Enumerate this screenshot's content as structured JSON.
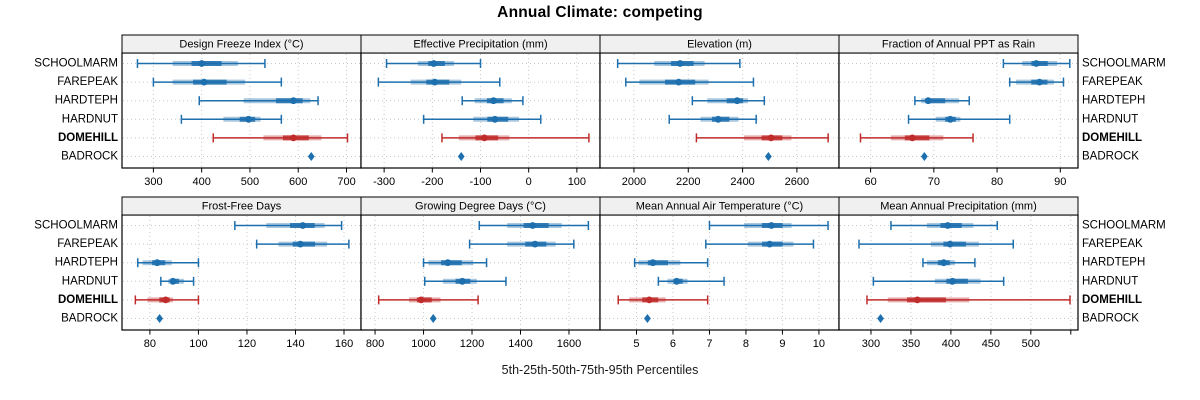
{
  "title": "Annual Climate: competing",
  "caption": "5th-25th-50th-75th-95th Percentiles",
  "sites": [
    "SCHOOLMARM",
    "FAREPEAK",
    "HARDTEPH",
    "HARDNUT",
    "DOMEHILL",
    "BADROCK"
  ],
  "highlight_site": "DOMEHILL",
  "point_only_site": "BADROCK",
  "colors": {
    "series": "#1d6fae",
    "highlight": "#c02b2b",
    "grid": "#c8c8c8",
    "strip_bg": "#f0f0f0",
    "border": "#000000",
    "tick_text": "#000000"
  },
  "chart_data": {
    "type": "trellis-dotplot",
    "percentile_labels": [
      "5th",
      "25th",
      "50th",
      "75th",
      "95th"
    ],
    "grid": "dotted",
    "layout": "2 rows x 4 columns, site labels on both left and right",
    "panels": [
      {
        "title": "Design Freeze Index (°C)",
        "ticks": [
          300,
          400,
          500,
          600,
          700
        ],
        "range": [
          235,
          730
        ],
        "intervals": [
          {
            "site": "SCHOOLMARM",
            "p": [
              267,
              340,
              400,
              475,
              531
            ]
          },
          {
            "site": "FAREPEAK",
            "p": [
              300,
              340,
              405,
              490,
              565
            ]
          },
          {
            "site": "HARDTEPH",
            "p": [
              395,
              487,
              590,
              625,
              641
            ]
          },
          {
            "site": "HARDNUT",
            "p": [
              358,
              445,
              497,
              522,
              565
            ]
          },
          {
            "site": "DOMEHILL",
            "p": [
              424,
              528,
              590,
              648,
              702
            ]
          }
        ],
        "point": {
          "site": "BADROCK",
          "value": 627
        }
      },
      {
        "title": "Effective Precipitation (mm)",
        "ticks": [
          -300,
          -200,
          -100,
          0,
          100
        ],
        "range": [
          -348,
          148
        ],
        "intervals": [
          {
            "site": "SCHOOLMARM",
            "p": [
              -295,
              -230,
              -197,
              -155,
              -100
            ]
          },
          {
            "site": "FAREPEAK",
            "p": [
              -312,
              -245,
              -195,
              -140,
              -60
            ]
          },
          {
            "site": "HARDTEPH",
            "p": [
              -138,
              -112,
              -73,
              -35,
              -12
            ]
          },
          {
            "site": "HARDNUT",
            "p": [
              -218,
              -115,
              -70,
              -20,
              25
            ]
          },
          {
            "site": "DOMEHILL",
            "p": [
              -180,
              -145,
              -92,
              -40,
              125
            ]
          }
        ],
        "point": {
          "site": "BADROCK",
          "value": -140
        }
      },
      {
        "title": "Elevation (m)",
        "ticks": [
          2000,
          2200,
          2400,
          2600
        ],
        "range": [
          1875,
          2755
        ],
        "intervals": [
          {
            "site": "SCHOOLMARM",
            "p": [
              1940,
              2075,
              2170,
              2260,
              2390
            ]
          },
          {
            "site": "FAREPEAK",
            "p": [
              1970,
              2020,
              2165,
              2275,
              2440
            ]
          },
          {
            "site": "HARDTEPH",
            "p": [
              2215,
              2270,
              2380,
              2420,
              2480
            ]
          },
          {
            "site": "HARDNUT",
            "p": [
              2130,
              2245,
              2310,
              2385,
              2450
            ]
          },
          {
            "site": "DOMEHILL",
            "p": [
              2230,
              2405,
              2505,
              2580,
              2715
            ]
          }
        ],
        "point": {
          "site": "BADROCK",
          "value": 2495
        }
      },
      {
        "title": "Fraction of Annual PPT as Rain",
        "ticks": [
          60,
          70,
          80,
          90
        ],
        "range": [
          55,
          92.8
        ],
        "intervals": [
          {
            "site": "SCHOOLMARM",
            "p": [
              81,
              84,
              86.2,
              89.5,
              91.5
            ]
          },
          {
            "site": "FAREPEAK",
            "p": [
              82,
              83,
              86.7,
              89,
              90.5
            ]
          },
          {
            "site": "HARDTEPH",
            "p": [
              67,
              68,
              69.1,
              74,
              75.6
            ]
          },
          {
            "site": "HARDNUT",
            "p": [
              66,
              70.3,
              72.6,
              74.2,
              82
            ]
          },
          {
            "site": "DOMEHILL",
            "p": [
              58.4,
              63.2,
              66.6,
              71.5,
              76.2
            ]
          }
        ],
        "point": {
          "site": "BADROCK",
          "value": 68.5
        }
      },
      {
        "title": "Frost-Free Days",
        "ticks": [
          80,
          100,
          120,
          140,
          160
        ],
        "range": [
          68.5,
          167
        ],
        "intervals": [
          {
            "site": "SCHOOLMARM",
            "p": [
              115,
              128,
              143,
              152,
              159
            ]
          },
          {
            "site": "FAREPEAK",
            "p": [
              124,
              133,
              142,
              153,
              162
            ]
          },
          {
            "site": "HARDTEPH",
            "p": [
              75,
              77,
              83,
              89,
              100
            ]
          },
          {
            "site": "HARDNUT",
            "p": [
              84.5,
              87.5,
              89.5,
              94,
              98
            ]
          },
          {
            "site": "DOMEHILL",
            "p": [
              74,
              79,
              86.5,
              89.5,
              100
            ]
          }
        ],
        "point": {
          "site": "BADROCK",
          "value": 84
        }
      },
      {
        "title": "Growing Degree Days (°C)",
        "ticks": [
          800,
          1000,
          1200,
          1400,
          1600
        ],
        "range": [
          742,
          1728
        ],
        "intervals": [
          {
            "site": "SCHOOLMARM",
            "p": [
              1230,
              1345,
              1450,
              1570,
              1680
            ]
          },
          {
            "site": "FAREPEAK",
            "p": [
              1190,
              1345,
              1460,
              1545,
              1620
            ]
          },
          {
            "site": "HARDTEPH",
            "p": [
              1000,
              1020,
              1100,
              1205,
              1260
            ]
          },
          {
            "site": "HARDNUT",
            "p": [
              1005,
              1080,
              1160,
              1220,
              1340
            ]
          },
          {
            "site": "DOMEHILL",
            "p": [
              815,
              940,
              990,
              1070,
              1225
            ]
          }
        ],
        "point": {
          "site": "BADROCK",
          "value": 1040
        }
      },
      {
        "title": "Mean Annual Air Temperature (°C)",
        "ticks": [
          5,
          6,
          7,
          8,
          9,
          10
        ],
        "range": [
          4.0,
          10.55
        ],
        "intervals": [
          {
            "site": "SCHOOLMARM",
            "p": [
              7.0,
              7.95,
              8.7,
              9.25,
              10.25
            ]
          },
          {
            "site": "FAREPEAK",
            "p": [
              6.9,
              8.05,
              8.65,
              9.3,
              9.85
            ]
          },
          {
            "site": "HARDTEPH",
            "p": [
              4.95,
              5.05,
              5.45,
              6.2,
              6.95
            ]
          },
          {
            "site": "HARDNUT",
            "p": [
              5.6,
              5.85,
              6.1,
              6.4,
              7.4
            ]
          },
          {
            "site": "DOMEHILL",
            "p": [
              4.5,
              4.8,
              5.35,
              5.8,
              6.95
            ]
          }
        ],
        "point": {
          "site": "BADROCK",
          "value": 5.3
        }
      },
      {
        "title": "Mean Annual Precipitation (mm)",
        "ticks": [
          300,
          350,
          400,
          450,
          500
        ],
        "extra_grid": [
          550
        ],
        "range": [
          260,
          559
        ],
        "intervals": [
          {
            "site": "SCHOOLMARM",
            "p": [
              325,
              370,
              396,
              428,
              458
            ]
          },
          {
            "site": "FAREPEAK",
            "p": [
              285,
              375,
              399,
              435,
              478
            ]
          },
          {
            "site": "HARDTEPH",
            "p": [
              365,
              370,
              391,
              405,
              430
            ]
          },
          {
            "site": "HARDNUT",
            "p": [
              303,
              380,
              402,
              437,
              466
            ]
          },
          {
            "site": "DOMEHILL",
            "p": [
              295,
              321,
              358,
              423,
              549
            ]
          }
        ],
        "point": {
          "site": "BADROCK",
          "value": 312
        }
      }
    ]
  }
}
